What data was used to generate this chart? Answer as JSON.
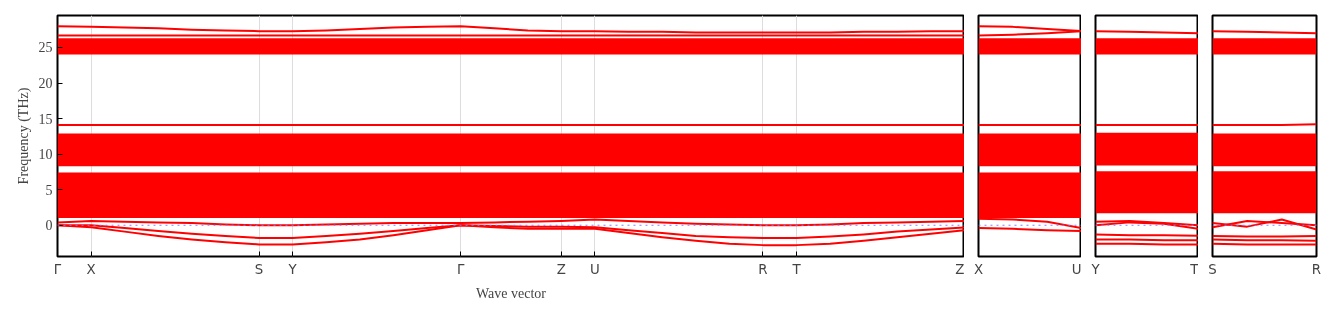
{
  "chart_data": [
    {
      "type": "line",
      "ylabel": "Frequency (THz)",
      "xlabel": "Wave vector",
      "ylim": [
        -4.4,
        29.5
      ],
      "yticks": [
        0,
        5,
        10,
        15,
        20,
        25
      ],
      "categories": [
        "Γ",
        "X",
        null,
        null,
        null,
        null,
        "S",
        "Y",
        null,
        null,
        null,
        null,
        "Γ",
        null,
        null,
        "Z",
        "U",
        null,
        null,
        null,
        null,
        "R",
        "T",
        null,
        null,
        null,
        null,
        "Z"
      ],
      "grid": "x",
      "line_style": "solid",
      "series": [
        {
          "color": "#ff0000",
          "values": [
            28,
            27.9,
            27.8,
            27.7,
            27.5,
            27.4,
            27.3,
            27.3,
            27.4,
            27.6,
            27.8,
            27.9,
            28,
            27.7,
            27.4,
            27.3,
            27.3,
            27.2,
            27.2,
            27.1,
            27.1,
            27.1,
            27.1,
            27.1,
            27.2,
            27.2,
            27.3,
            27.3
          ]
        },
        {
          "color": "#ff0000",
          "values": [
            26.7,
            26.7,
            26.7,
            26.7,
            26.7,
            26.7,
            26.7,
            26.7,
            26.7,
            26.7,
            26.7,
            26.7,
            26.7,
            26.7,
            26.7,
            26.7,
            26.7,
            26.7,
            26.7,
            26.7,
            26.7,
            26.7,
            26.7,
            26.7,
            26.7,
            26.7,
            26.7,
            26.7
          ]
        },
        {
          "color": "#ff0000",
          "values": [
            14.1,
            14.1,
            14.1,
            14.1,
            14.1,
            14.1,
            14.1,
            14.1,
            14.1,
            14.1,
            14.1,
            14.1,
            14.1,
            14.1,
            14.1,
            14.1,
            14.1,
            14.1,
            14.1,
            14.1,
            14.1,
            14.1,
            14.1,
            14.1,
            14.1,
            14.1,
            14.1,
            14.1
          ]
        },
        {
          "color": "#ff0000",
          "values": [
            0,
            -0.3,
            -0.9,
            -1.5,
            -2.0,
            -2.4,
            -2.7,
            -2.7,
            -2.4,
            -2.0,
            -1.4,
            -0.7,
            0,
            -0.3,
            -0.5,
            -0.5,
            -0.5,
            -1.1,
            -1.7,
            -2.2,
            -2.6,
            -2.8,
            -2.8,
            -2.6,
            -2.2,
            -1.7,
            -1.2,
            -0.7
          ]
        },
        {
          "color": "#ff0000",
          "values": [
            0,
            0,
            -0.4,
            -0.8,
            -1.2,
            -1.5,
            -1.8,
            -1.8,
            -1.5,
            -1.2,
            -0.8,
            -0.4,
            0,
            -0.1,
            -0.2,
            -0.2,
            -0.3,
            -0.7,
            -1.1,
            -1.5,
            -1.7,
            -1.8,
            -1.8,
            -1.6,
            -1.3,
            -0.9,
            -0.6,
            -0.3
          ]
        },
        {
          "color": "#ff0000",
          "values": [
            0.4,
            0.6,
            0.5,
            0.4,
            0.3,
            0.1,
            0,
            0,
            0.1,
            0.2,
            0.3,
            0.3,
            0.3,
            0.4,
            0.5,
            0.6,
            0.8,
            0.6,
            0.4,
            0.2,
            0.1,
            0,
            0,
            0.1,
            0.3,
            0.4,
            0.5,
            0.6
          ]
        }
      ],
      "bands": [
        {
          "axis": "y",
          "from": 24,
          "to": 26.3,
          "color": "#ff0000"
        },
        {
          "axis": "y",
          "from": 8.3,
          "to": 12.9,
          "color": "#ff0000"
        },
        {
          "axis": "y",
          "from": 1.0,
          "to": 7.4,
          "color": "#ff0000"
        }
      ],
      "ref_lines": [
        {
          "axis": "y",
          "value": 0,
          "color": "#8080ff",
          "line_style": "dotted"
        }
      ]
    },
    {
      "type": "line",
      "ylim": [
        -4.4,
        29.5
      ],
      "yticks": [
        0,
        5,
        10,
        15,
        20,
        25
      ],
      "tick_labels": "x",
      "categories": [
        "X",
        null,
        null,
        "U"
      ],
      "line_style": "solid",
      "series": [
        {
          "color": "#ff0000",
          "values": [
            28,
            27.9,
            27.6,
            27.3
          ]
        },
        {
          "color": "#ff0000",
          "values": [
            26.7,
            26.8,
            27.0,
            27.3
          ]
        },
        {
          "color": "#ff0000",
          "values": [
            14.1,
            14.1,
            14.1,
            14.1
          ]
        },
        {
          "color": "#ff0000",
          "values": [
            -0.4,
            -0.5,
            -0.7,
            -0.8
          ]
        },
        {
          "color": "#ff0000",
          "values": [
            0.9,
            0.8,
            0.5,
            -0.4
          ]
        }
      ],
      "bands": [
        {
          "axis": "y",
          "from": 24,
          "to": 26.3,
          "color": "#ff0000"
        },
        {
          "axis": "y",
          "from": 8.3,
          "to": 12.9,
          "color": "#ff0000"
        },
        {
          "axis": "y",
          "from": 1.0,
          "to": 7.4,
          "color": "#ff0000"
        }
      ],
      "ref_lines": [
        {
          "axis": "y",
          "value": 0,
          "color": "#8080ff",
          "line_style": "dotted"
        }
      ]
    },
    {
      "type": "line",
      "ylim": [
        -4.4,
        29.5
      ],
      "yticks": [
        0,
        5,
        10,
        15,
        20,
        25
      ],
      "tick_labels": "x",
      "categories": [
        "Y",
        null,
        null,
        "T"
      ],
      "line_style": "solid",
      "series": [
        {
          "color": "#ff0000",
          "values": [
            27.3,
            27.2,
            27.1,
            27.0
          ]
        },
        {
          "color": "#ff0000",
          "values": [
            14.1,
            14.1,
            14.1,
            14.1
          ]
        },
        {
          "color": "#ff0000",
          "values": [
            -1.3,
            -1.4,
            -1.4,
            -1.5
          ]
        },
        {
          "color": "#ff0000",
          "values": [
            -2.0,
            -2.0,
            -2.1,
            -2.1
          ]
        },
        {
          "color": "#ff0000",
          "values": [
            -2.6,
            -2.6,
            -2.7,
            -2.7
          ]
        },
        {
          "color": "#ff0000",
          "values": [
            0,
            0.4,
            0.2,
            -0.5
          ]
        },
        {
          "color": "#ff0000",
          "values": [
            0.5,
            0.6,
            0.3,
            0
          ]
        }
      ],
      "bands": [
        {
          "axis": "y",
          "from": 24,
          "to": 26.3,
          "color": "#ff0000"
        },
        {
          "axis": "y",
          "from": 8.4,
          "to": 13.0,
          "color": "#ff0000"
        },
        {
          "axis": "y",
          "from": 1.7,
          "to": 7.6,
          "color": "#ff0000"
        }
      ],
      "ref_lines": [
        {
          "axis": "y",
          "value": 0,
          "color": "#8080ff",
          "line_style": "dotted"
        }
      ]
    },
    {
      "type": "line",
      "ylim": [
        -4.4,
        29.5
      ],
      "yticks": [
        0,
        5,
        10,
        15,
        20,
        25
      ],
      "tick_labels": "x",
      "categories": [
        "S",
        null,
        null,
        "R"
      ],
      "line_style": "solid",
      "series": [
        {
          "color": "#ff0000",
          "values": [
            27.3,
            27.2,
            27.1,
            27.0
          ]
        },
        {
          "color": "#ff0000",
          "values": [
            14.1,
            14.1,
            14.1,
            14.2
          ]
        },
        {
          "color": "#ff0000",
          "values": [
            -1.5,
            -1.6,
            -1.6,
            -1.5
          ]
        },
        {
          "color": "#ff0000",
          "values": [
            -2.0,
            -2.1,
            -2.1,
            -2.2
          ]
        },
        {
          "color": "#ff0000",
          "values": [
            -2.6,
            -2.7,
            -2.7,
            -2.7
          ]
        },
        {
          "color": "#ff0000",
          "values": [
            -0.3,
            0.6,
            0.3,
            0
          ]
        },
        {
          "color": "#ff0000",
          "values": [
            0.3,
            -0.2,
            0.8,
            -0.6
          ]
        }
      ],
      "bands": [
        {
          "axis": "y",
          "from": 24,
          "to": 26.3,
          "color": "#ff0000"
        },
        {
          "axis": "y",
          "from": 8.3,
          "to": 12.9,
          "color": "#ff0000"
        },
        {
          "axis": "y",
          "from": 1.7,
          "to": 7.6,
          "color": "#ff0000"
        }
      ],
      "ref_lines": [
        {
          "axis": "y",
          "value": 0,
          "color": "#8080ff",
          "line_style": "dotted"
        }
      ]
    }
  ]
}
